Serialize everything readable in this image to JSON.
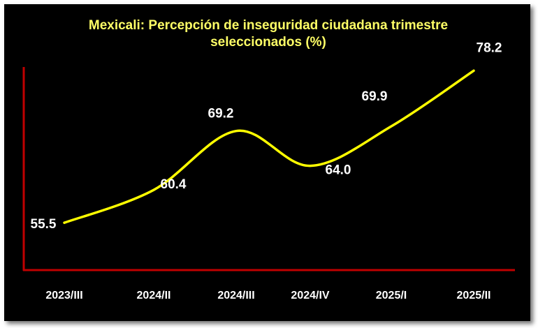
{
  "colors": {
    "background": "#000000",
    "line": "#ffff00",
    "axis": "#c00000",
    "title": "#ffff66",
    "labels": "#ffffff"
  },
  "chart_data": {
    "type": "line",
    "title": "Mexicali: Percepción de inseguridad ciudadana trimestre seleccionados (%)",
    "title_lines": [
      "Mexicali: Percepción de inseguridad ciudadana trimestre",
      "seleccionados (%)"
    ],
    "categories": [
      "2023/III",
      "2024/II",
      "2024/III",
      "2024/IV",
      "2025/I",
      "2025/II"
    ],
    "values": [
      55.5,
      60.4,
      69.2,
      64.0,
      69.9,
      78.2
    ],
    "value_labels": [
      "55.5",
      "60.4",
      "69.2",
      "64.0",
      "69.9",
      "78.2"
    ],
    "xlabel": "",
    "ylabel": "",
    "ylim": [
      50,
      80
    ],
    "grid": false,
    "legend": "none"
  }
}
